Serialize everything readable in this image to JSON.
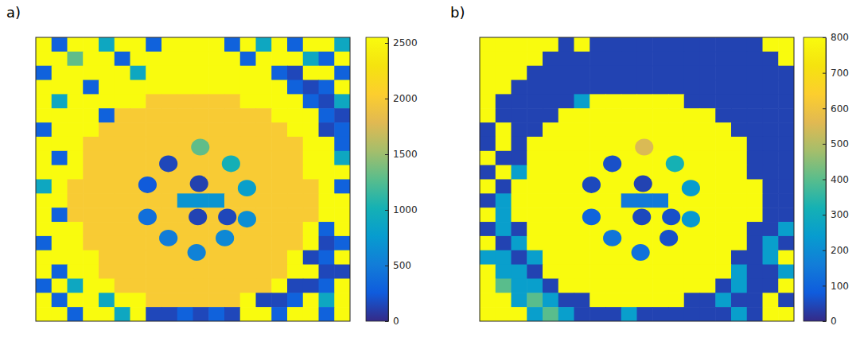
{
  "chart_data": [
    {
      "type": "heatmap",
      "title": "a)",
      "tick_labels": false,
      "xlim": [
        0,
        256
      ],
      "ylim": [
        256,
        0
      ],
      "colorbar": {
        "range": [
          0,
          2550
        ],
        "ticks": [
          0,
          500,
          1000,
          1500,
          2000,
          2500
        ]
      },
      "cells": [
        [
          2550,
          300,
          2550,
          2550,
          900,
          2550,
          2550,
          300,
          2550,
          2550,
          2550,
          2550,
          300,
          2550,
          900,
          2550,
          300,
          2550,
          2550,
          900
        ],
        [
          2550,
          2550,
          1300,
          2550,
          2550,
          300,
          2550,
          2550,
          2550,
          2550,
          2550,
          2550,
          2550,
          300,
          2550,
          2550,
          2550,
          900,
          300,
          2550
        ],
        [
          300,
          2550,
          2550,
          2550,
          2550,
          2550,
          900,
          2550,
          2550,
          2550,
          2550,
          2550,
          2550,
          2550,
          2550,
          300,
          150,
          2550,
          2550,
          300
        ],
        [
          2550,
          2550,
          2550,
          300,
          2550,
          2550,
          2550,
          2550,
          2550,
          2550,
          2550,
          2550,
          2550,
          2550,
          2550,
          2550,
          300,
          150,
          300,
          2550
        ],
        [
          2550,
          900,
          2550,
          2550,
          2550,
          2550,
          2550,
          2000,
          2000,
          2000,
          2000,
          2000,
          2000,
          2550,
          2550,
          2550,
          2550,
          300,
          150,
          900
        ],
        [
          2550,
          2550,
          2550,
          2550,
          300,
          2000,
          2000,
          2000,
          2000,
          2000,
          2000,
          2000,
          2000,
          2000,
          2000,
          2550,
          2550,
          2550,
          300,
          150
        ],
        [
          300,
          2550,
          2550,
          2550,
          2000,
          2000,
          2000,
          2000,
          2000,
          2000,
          2000,
          2000,
          2000,
          2000,
          2000,
          2000,
          2550,
          2550,
          150,
          300
        ],
        [
          2550,
          2550,
          2550,
          2000,
          2000,
          2000,
          2000,
          2000,
          2000,
          2000,
          2000,
          2000,
          2000,
          2000,
          2000,
          2000,
          2000,
          2550,
          2550,
          300
        ],
        [
          2550,
          300,
          2550,
          2000,
          2000,
          2000,
          2000,
          2000,
          2000,
          2000,
          2000,
          2000,
          2000,
          2000,
          2000,
          2000,
          2000,
          2550,
          2550,
          900
        ],
        [
          2550,
          2550,
          2550,
          2000,
          2000,
          2000,
          2000,
          2000,
          2000,
          2000,
          2000,
          2000,
          2000,
          2000,
          2000,
          2000,
          2000,
          2550,
          2550,
          2550
        ],
        [
          900,
          2550,
          2000,
          2000,
          2000,
          2000,
          2000,
          2000,
          2000,
          2000,
          2000,
          2000,
          2000,
          2000,
          2000,
          2000,
          2000,
          2000,
          2550,
          300
        ],
        [
          2550,
          2550,
          2000,
          2000,
          2000,
          2000,
          2000,
          2000,
          2000,
          700,
          700,
          700,
          2000,
          2000,
          2000,
          2000,
          2000,
          2000,
          2550,
          2550
        ],
        [
          2550,
          300,
          2000,
          2000,
          2000,
          2000,
          2000,
          2000,
          2000,
          2000,
          2000,
          2000,
          2000,
          2000,
          2000,
          2000,
          2000,
          2000,
          2550,
          2550
        ],
        [
          2550,
          2550,
          2550,
          2000,
          2000,
          2000,
          2000,
          2000,
          2000,
          2000,
          2000,
          2000,
          2000,
          2000,
          2000,
          2000,
          2000,
          2550,
          300,
          2550
        ],
        [
          300,
          2550,
          2550,
          2000,
          2000,
          2000,
          2000,
          2000,
          2000,
          2000,
          2000,
          2000,
          2000,
          2000,
          2000,
          2000,
          2000,
          2550,
          150,
          300
        ],
        [
          2550,
          2550,
          2550,
          2550,
          2000,
          2000,
          2000,
          2000,
          2000,
          2000,
          2000,
          2000,
          2000,
          2000,
          2000,
          2000,
          2550,
          150,
          300,
          2550
        ],
        [
          2550,
          300,
          2550,
          2550,
          2000,
          2000,
          2000,
          2000,
          2000,
          2000,
          2000,
          2000,
          2000,
          2000,
          2000,
          2000,
          2550,
          2550,
          150,
          150
        ],
        [
          300,
          2550,
          900,
          2550,
          2550,
          2000,
          2000,
          2000,
          2000,
          2000,
          2000,
          2000,
          2000,
          2000,
          2000,
          2550,
          150,
          150,
          300,
          2550
        ],
        [
          2550,
          300,
          2550,
          2550,
          900,
          2550,
          2550,
          2000,
          2000,
          2000,
          2000,
          2000,
          2000,
          2550,
          150,
          150,
          300,
          2550,
          900,
          2550
        ],
        [
          2550,
          2550,
          300,
          2550,
          2550,
          900,
          2550,
          150,
          150,
          300,
          150,
          300,
          150,
          2550,
          2550,
          300,
          2550,
          2550,
          300,
          2550
        ]
      ],
      "spots": {
        "x": [
          134,
          108,
          159,
          91,
          133,
          172,
          91,
          132,
          156,
          172,
          108,
          154,
          131
        ],
        "y": [
          99,
          114,
          114,
          133,
          132,
          136,
          162,
          162,
          162,
          164,
          181,
          181,
          194
        ],
        "sizes": [
          7.5,
          7.5,
          7.5,
          7.5,
          7.5,
          7.5,
          7.5,
          7.5,
          7.5,
          7.5,
          7.5,
          7.5,
          7.5
        ],
        "values": [
          1300,
          150,
          1000,
          250,
          120,
          800,
          400,
          130,
          150,
          650,
          500,
          600,
          550
        ]
      }
    },
    {
      "type": "heatmap",
      "title": "b)",
      "tick_labels": false,
      "xlim": [
        0,
        256
      ],
      "ylim": [
        256,
        0
      ],
      "colorbar": {
        "range": [
          0,
          800
        ],
        "ticks": [
          0,
          100,
          200,
          300,
          400,
          500,
          600,
          700,
          800
        ]
      },
      "cells": [
        [
          800,
          800,
          800,
          800,
          800,
          40,
          800,
          40,
          40,
          40,
          40,
          40,
          40,
          40,
          40,
          40,
          40,
          40,
          800,
          800
        ],
        [
          800,
          800,
          800,
          800,
          40,
          40,
          40,
          40,
          40,
          40,
          40,
          40,
          40,
          40,
          40,
          40,
          40,
          40,
          40,
          800
        ],
        [
          800,
          800,
          800,
          40,
          40,
          40,
          40,
          40,
          40,
          40,
          40,
          40,
          40,
          40,
          40,
          40,
          40,
          40,
          40,
          40
        ],
        [
          800,
          800,
          40,
          40,
          40,
          40,
          40,
          40,
          40,
          40,
          40,
          40,
          40,
          40,
          40,
          40,
          40,
          40,
          40,
          40
        ],
        [
          800,
          40,
          40,
          40,
          40,
          40,
          250,
          800,
          800,
          800,
          800,
          800,
          800,
          40,
          40,
          40,
          40,
          40,
          40,
          40
        ],
        [
          800,
          40,
          40,
          40,
          40,
          800,
          800,
          800,
          800,
          800,
          800,
          800,
          800,
          800,
          800,
          40,
          40,
          40,
          40,
          40
        ],
        [
          40,
          800,
          40,
          40,
          800,
          800,
          800,
          800,
          800,
          800,
          800,
          800,
          800,
          800,
          800,
          800,
          40,
          40,
          40,
          40
        ],
        [
          40,
          800,
          40,
          800,
          800,
          800,
          800,
          800,
          800,
          800,
          800,
          800,
          800,
          800,
          800,
          800,
          800,
          40,
          40,
          40
        ],
        [
          800,
          40,
          40,
          800,
          800,
          800,
          800,
          800,
          800,
          800,
          800,
          800,
          800,
          800,
          800,
          800,
          800,
          40,
          40,
          40
        ],
        [
          40,
          800,
          250,
          800,
          800,
          800,
          800,
          800,
          800,
          800,
          800,
          800,
          800,
          800,
          800,
          800,
          800,
          40,
          40,
          40
        ],
        [
          800,
          40,
          800,
          800,
          800,
          800,
          800,
          800,
          800,
          800,
          800,
          800,
          800,
          800,
          800,
          800,
          800,
          800,
          40,
          40
        ],
        [
          40,
          250,
          800,
          800,
          800,
          800,
          800,
          800,
          800,
          150,
          150,
          150,
          800,
          800,
          800,
          800,
          800,
          800,
          40,
          40
        ],
        [
          800,
          250,
          800,
          800,
          800,
          800,
          800,
          800,
          800,
          800,
          800,
          800,
          800,
          800,
          800,
          800,
          800,
          800,
          40,
          40
        ],
        [
          40,
          250,
          40,
          800,
          800,
          800,
          800,
          800,
          800,
          800,
          800,
          800,
          800,
          800,
          800,
          800,
          800,
          40,
          40,
          250
        ],
        [
          800,
          40,
          250,
          800,
          800,
          800,
          800,
          800,
          800,
          800,
          800,
          800,
          800,
          800,
          800,
          800,
          800,
          40,
          250,
          40
        ],
        [
          250,
          250,
          40,
          250,
          800,
          800,
          800,
          800,
          800,
          800,
          800,
          800,
          800,
          800,
          800,
          800,
          40,
          40,
          250,
          800
        ],
        [
          800,
          250,
          250,
          40,
          800,
          800,
          800,
          800,
          800,
          800,
          800,
          800,
          800,
          800,
          800,
          800,
          250,
          40,
          40,
          250
        ],
        [
          800,
          400,
          250,
          250,
          40,
          800,
          800,
          800,
          800,
          800,
          800,
          800,
          800,
          800,
          800,
          40,
          250,
          40,
          40,
          800
        ],
        [
          800,
          800,
          250,
          400,
          250,
          40,
          40,
          800,
          800,
          800,
          800,
          800,
          800,
          40,
          40,
          250,
          40,
          40,
          800,
          40
        ],
        [
          800,
          800,
          800,
          250,
          400,
          250,
          40,
          40,
          40,
          250,
          40,
          40,
          40,
          40,
          40,
          40,
          250,
          40,
          800,
          800
        ]
      ],
      "spots": {
        "x": [
          134,
          108,
          159,
          91,
          133,
          172,
          91,
          132,
          156,
          172,
          108,
          154,
          131
        ],
        "y": [
          99,
          114,
          114,
          133,
          132,
          136,
          162,
          162,
          162,
          164,
          181,
          181,
          194
        ],
        "sizes": [
          7.5,
          7.5,
          7.5,
          7.5,
          7.5,
          7.5,
          7.5,
          7.5,
          7.5,
          7.5,
          7.5,
          7.5,
          7.5
        ],
        "values": [
          550,
          60,
          320,
          50,
          40,
          240,
          100,
          50,
          60,
          230,
          140,
          60,
          130
        ]
      }
    }
  ]
}
